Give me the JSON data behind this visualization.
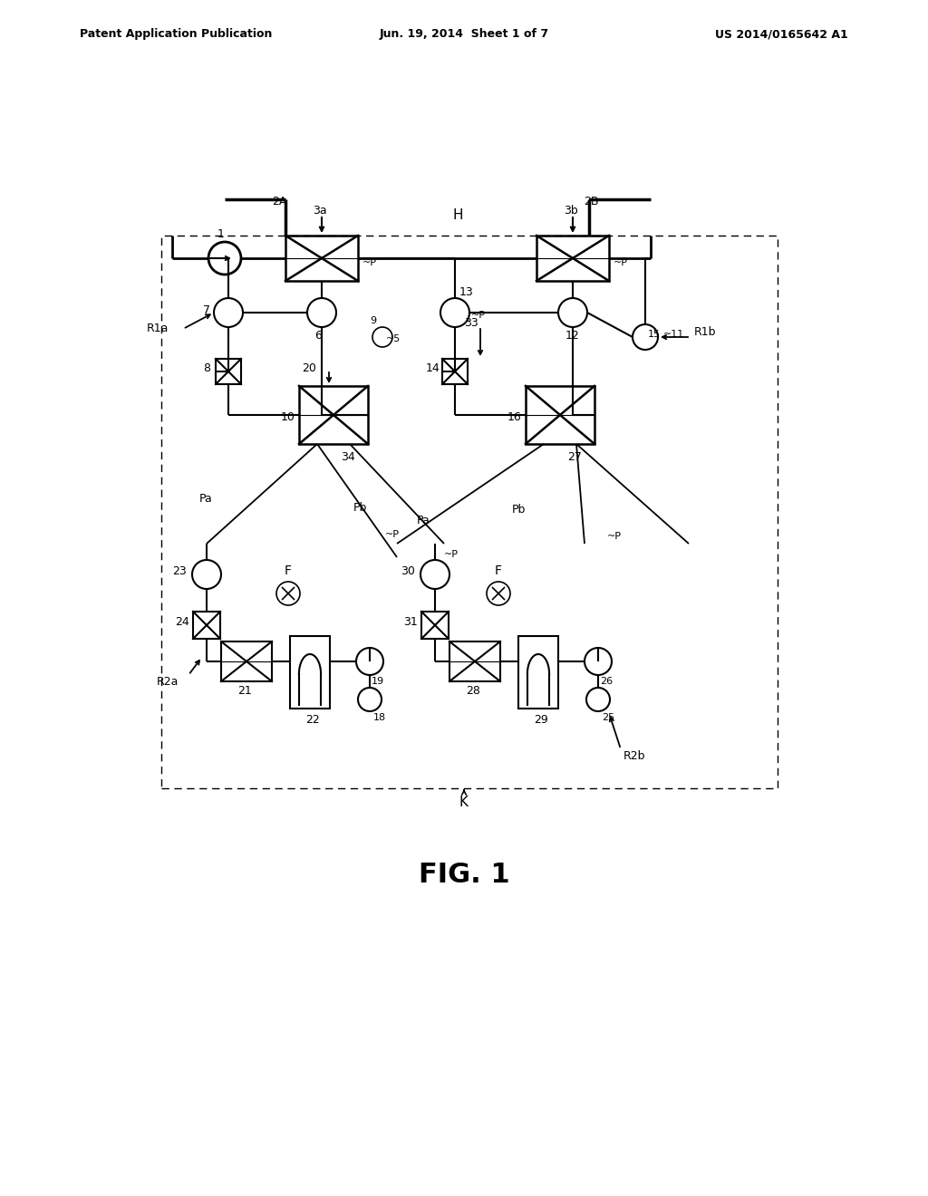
{
  "bg_color": "#ffffff",
  "text_color": "#000000",
  "line_color": "#000000",
  "header_left": "Patent Application Publication",
  "header_mid": "Jun. 19, 2014  Sheet 1 of 7",
  "header_right": "US 2014/0165642 A1",
  "figure_label": "FIG. 1"
}
